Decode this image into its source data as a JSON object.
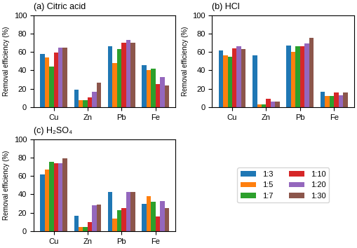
{
  "chart_data": [
    {
      "type": "bar",
      "title": "(a) Citric acid",
      "categories": [
        "Cu",
        "Zn",
        "Pb",
        "Fe"
      ],
      "series": [
        {
          "name": "1:3",
          "values": [
            58,
            19,
            66,
            46
          ]
        },
        {
          "name": "1:5",
          "values": [
            54,
            8,
            48,
            40
          ]
        },
        {
          "name": "1:7",
          "values": [
            44,
            8,
            63,
            42
          ]
        },
        {
          "name": "1:10",
          "values": [
            59,
            11,
            70,
            25
          ]
        },
        {
          "name": "1:20",
          "values": [
            65,
            17,
            73,
            33
          ]
        },
        {
          "name": "1:30",
          "values": [
            65,
            27,
            70,
            24
          ]
        }
      ],
      "ylabel": "Removal efficiency (%)",
      "ylim": [
        0,
        100
      ],
      "yticks": [
        0,
        20,
        40,
        60,
        80,
        100
      ]
    },
    {
      "type": "bar",
      "title": "(b) HCl",
      "categories": [
        "Cu",
        "Zn",
        "Pb",
        "Fe"
      ],
      "series": [
        {
          "name": "1:3",
          "values": [
            62,
            56,
            67,
            17
          ]
        },
        {
          "name": "1:5",
          "values": [
            56,
            3,
            60,
            12
          ]
        },
        {
          "name": "1:7",
          "values": [
            55,
            3,
            66,
            12
          ]
        },
        {
          "name": "1:10",
          "values": [
            64,
            9,
            66,
            16
          ]
        },
        {
          "name": "1:20",
          "values": [
            66,
            6,
            69,
            13
          ]
        },
        {
          "name": "1:30",
          "values": [
            63,
            6,
            75,
            16
          ]
        }
      ],
      "ylabel": "Removal efficiency (%)",
      "ylim": [
        0,
        100
      ],
      "yticks": [
        0,
        20,
        40,
        60,
        80,
        100
      ]
    },
    {
      "type": "bar",
      "title": "(c) H₂SO₄",
      "categories": [
        "Cu",
        "Zn",
        "Pb",
        "Fe"
      ],
      "series": [
        {
          "name": "1:3",
          "values": [
            62,
            17,
            43,
            30
          ]
        },
        {
          "name": "1:5",
          "values": [
            67,
            5,
            14,
            38
          ]
        },
        {
          "name": "1:7",
          "values": [
            75,
            5,
            23,
            32
          ]
        },
        {
          "name": "1:10",
          "values": [
            74,
            10,
            25,
            16
          ]
        },
        {
          "name": "1:20",
          "values": [
            74,
            28,
            43,
            33
          ]
        },
        {
          "name": "1:30",
          "values": [
            79,
            29,
            43,
            25
          ]
        }
      ],
      "ylabel": "Removal efficiency (%)",
      "ylim": [
        0,
        100
      ],
      "yticks": [
        0,
        20,
        40,
        60,
        80,
        100
      ]
    }
  ]
}
